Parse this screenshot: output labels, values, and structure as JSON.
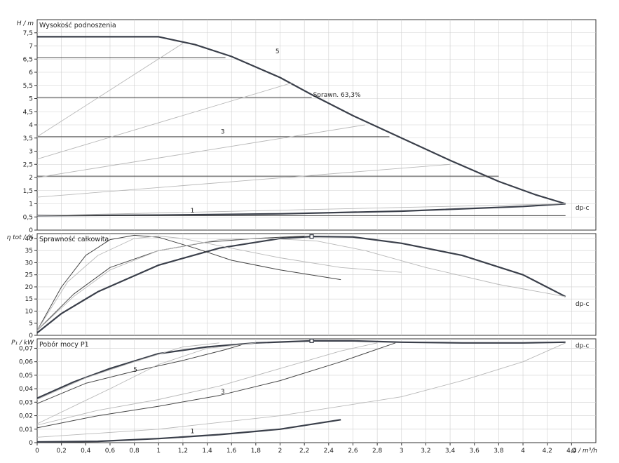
{
  "chart_data": [
    {
      "type": "line",
      "title": "Wysokość podnoszenia",
      "ylabel": "H / m",
      "ylim": [
        0,
        8
      ],
      "yticks": [
        "0",
        "0,5",
        "1",
        "1,5",
        "2",
        "2,5",
        "3",
        "3,5",
        "4",
        "4,5",
        "5",
        "5,5",
        "6",
        "6,5",
        "7",
        "7,5"
      ],
      "grid": true,
      "annotations": [
        {
          "text": "Sprawn. 63,3%",
          "x": 2.26,
          "y": 5.15
        },
        {
          "text": "5",
          "x": 1.95,
          "y": 6.8
        },
        {
          "text": "3",
          "x": 1.5,
          "y": 3.75
        },
        {
          "text": "1",
          "x": 1.25,
          "y": 0.75
        },
        {
          "text": "dp-c",
          "x": 4.42,
          "y": 0.85
        }
      ],
      "series": [
        {
          "style": "heavy",
          "x": [
            0,
            1.0,
            1.3,
            1.6,
            2.0,
            2.26,
            2.6,
            3.0,
            3.4,
            3.8,
            4.1,
            4.35
          ],
          "y": [
            7.35,
            7.35,
            7.05,
            6.6,
            5.8,
            5.15,
            4.35,
            3.5,
            2.65,
            1.85,
            1.35,
            1.0
          ]
        },
        {
          "style": "heavy",
          "x": [
            0,
            1.0,
            2.0,
            3.0,
            4.0,
            4.35
          ],
          "y": [
            0.55,
            0.57,
            0.62,
            0.72,
            0.9,
            1.0
          ]
        },
        {
          "style": "thin",
          "x": [
            0,
            4.35
          ],
          "y": [
            0.55,
            0.55
          ]
        },
        {
          "style": "thin",
          "x": [
            0,
            2.26
          ],
          "y": [
            5.05,
            5.05
          ]
        },
        {
          "style": "thin",
          "x": [
            0,
            1.55
          ],
          "y": [
            6.55,
            6.55
          ]
        },
        {
          "style": "thin",
          "x": [
            0,
            2.9
          ],
          "y": [
            3.55,
            3.55
          ]
        },
        {
          "style": "thin",
          "x": [
            0,
            3.8
          ],
          "y": [
            2.05,
            2.05
          ]
        },
        {
          "style": "light",
          "x": [
            0,
            1.2
          ],
          "y": [
            3.55,
            7.1
          ]
        },
        {
          "style": "light",
          "x": [
            0,
            2.1
          ],
          "y": [
            2.7,
            5.6
          ]
        },
        {
          "style": "light",
          "x": [
            0,
            2.7
          ],
          "y": [
            2.0,
            4.0
          ]
        },
        {
          "style": "light",
          "x": [
            0,
            3.4
          ],
          "y": [
            1.25,
            2.5
          ]
        },
        {
          "style": "light",
          "x": [
            0,
            4.35
          ],
          "y": [
            0.55,
            1.0
          ]
        }
      ]
    },
    {
      "type": "line",
      "title": "Sprawność całkowita",
      "ylabel": "η tot / %",
      "ylim": [
        0,
        42
      ],
      "yticks": [
        "0",
        "5",
        "10",
        "15",
        "20",
        "25",
        "30",
        "35",
        "40"
      ],
      "grid": true,
      "annotations": [
        {
          "text": "dp-c",
          "x": 4.42,
          "y": 13
        }
      ],
      "series": [
        {
          "style": "heavy",
          "x": [
            0,
            0.2,
            0.5,
            1.0,
            1.5,
            2.0,
            2.26,
            2.6,
            3.0,
            3.5,
            4.0,
            4.35
          ],
          "y": [
            1,
            9,
            18,
            29,
            36,
            40,
            40.8,
            40.6,
            38,
            33,
            25,
            16
          ]
        },
        {
          "style": "thin",
          "x": [
            0,
            0.2,
            0.4,
            0.6,
            0.8,
            1.0,
            1.3,
            1.6,
            2.0,
            2.5
          ],
          "y": [
            2,
            20,
            33,
            39.5,
            41.3,
            40.5,
            36,
            31,
            27,
            23
          ]
        },
        {
          "style": "thin",
          "x": [
            0,
            0.3,
            0.6,
            1.0,
            1.4,
            1.8,
            2.2
          ],
          "y": [
            2,
            17,
            28,
            35,
            38.5,
            40,
            41
          ]
        },
        {
          "style": "light",
          "x": [
            0,
            0.3,
            0.6,
            1.0,
            1.5,
            1.9,
            2.3,
            2.7,
            3.2,
            3.8,
            4.35
          ],
          "y": [
            2,
            16,
            27,
            35,
            39.5,
            40,
            39,
            35,
            28,
            21,
            16
          ]
        },
        {
          "style": "light",
          "x": [
            0,
            0.25,
            0.5,
            0.8,
            1.0,
            1.2,
            1.5,
            2.0,
            2.5,
            3.0
          ],
          "y": [
            2,
            22,
            33,
            40,
            41,
            40,
            37,
            32,
            28,
            26
          ]
        }
      ],
      "markers": [
        {
          "x": 2.26,
          "y": 40.8
        }
      ]
    },
    {
      "type": "line",
      "title": "Pobór mocy P1",
      "ylabel": "P₁ / kW",
      "ylim": [
        0,
        0.077
      ],
      "yticks": [
        "0",
        "0,01",
        "0,02",
        "0,03",
        "0,04",
        "0,05",
        "0,06",
        "0,07"
      ],
      "xlabel": "Q / m³/h",
      "xlim": [
        0,
        4.6
      ],
      "xticks": [
        "0",
        "0,2",
        "0,4",
        "0,6",
        "0,8",
        "1",
        "1,2",
        "1,4",
        "1,6",
        "1,8",
        "2",
        "2,2",
        "2,4",
        "2,6",
        "2,8",
        "3",
        "3,2",
        "3,4",
        "3,6",
        "3,8",
        "4",
        "4,2",
        "4,4"
      ],
      "grid": true,
      "annotations": [
        {
          "text": "5",
          "x": 0.78,
          "y": 0.054
        },
        {
          "text": "3",
          "x": 1.5,
          "y": 0.038
        },
        {
          "text": "1",
          "x": 1.25,
          "y": 0.0085
        },
        {
          "text": "dp-c",
          "x": 4.42,
          "y": 0.072
        }
      ],
      "series": [
        {
          "style": "heavy",
          "x": [
            0,
            0.3,
            0.6,
            1.0,
            1.4,
            1.8,
            2.26,
            2.6,
            3.0,
            3.5,
            4.0,
            4.35
          ],
          "y": [
            0.033,
            0.045,
            0.055,
            0.066,
            0.071,
            0.074,
            0.0755,
            0.0755,
            0.0745,
            0.074,
            0.074,
            0.0745
          ]
        },
        {
          "style": "heavy",
          "x": [
            0,
            0.5,
            1.0,
            1.5,
            2.0,
            2.5
          ],
          "y": [
            0.0005,
            0.001,
            0.003,
            0.006,
            0.01,
            0.017
          ]
        },
        {
          "style": "thin",
          "x": [
            0,
            0.4,
            0.8,
            1.2,
            1.55,
            1.7
          ],
          "y": [
            0.029,
            0.044,
            0.053,
            0.061,
            0.069,
            0.073
          ]
        },
        {
          "style": "thin",
          "x": [
            0,
            0.5,
            1.0,
            1.5,
            2.0,
            2.5,
            2.95
          ],
          "y": [
            0.011,
            0.02,
            0.027,
            0.035,
            0.046,
            0.06,
            0.074
          ]
        },
        {
          "style": "light",
          "x": [
            0,
            0.5,
            1.0,
            1.5,
            2.0,
            2.5,
            2.8
          ],
          "y": [
            0.013,
            0.024,
            0.032,
            0.042,
            0.055,
            0.068,
            0.074
          ]
        },
        {
          "style": "light",
          "x": [
            0,
            1.0,
            2.0,
            3.0,
            3.5,
            4.0,
            4.35
          ],
          "y": [
            0.004,
            0.01,
            0.02,
            0.034,
            0.046,
            0.06,
            0.074
          ]
        },
        {
          "style": "light",
          "x": [
            0,
            0.4,
            0.8,
            1.2,
            1.5
          ],
          "y": [
            0.032,
            0.048,
            0.06,
            0.071,
            0.074
          ]
        },
        {
          "style": "light",
          "x": [
            0,
            0.6,
            1.0,
            1.4,
            1.8
          ],
          "y": [
            0.014,
            0.04,
            0.058,
            0.07,
            0.074
          ]
        }
      ],
      "markers": [
        {
          "x": 2.26,
          "y": 0.0755
        }
      ]
    }
  ],
  "chart_colors": {
    "heavy": "#3a3f4a",
    "thin": "#444444",
    "light": "#b8b8b8",
    "grid": "#cfcfcf",
    "frame": "#333333"
  }
}
